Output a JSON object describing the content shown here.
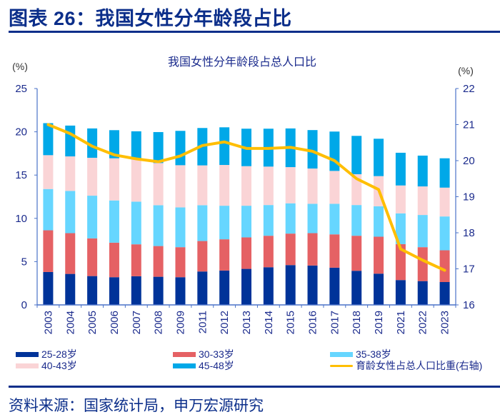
{
  "header": {
    "title": "图表 26：我国女性分年龄段占比"
  },
  "footer": {
    "source": "资料来源：国家统计局，申万宏源研究"
  },
  "chart_data": {
    "type": "bar",
    "stacked": true,
    "title": "我国女性分年龄段占总人口比",
    "left_unit": "(%)",
    "right_unit": "(%)",
    "categories": [
      "2003",
      "2004",
      "2005",
      "2006",
      "2007",
      "2008",
      "2009",
      "2011",
      "2012",
      "2013",
      "2014",
      "2015",
      "2016",
      "2017",
      "2018",
      "2019",
      "2021",
      "2022",
      "2023"
    ],
    "y_left": {
      "min": 0,
      "max": 25,
      "ticks": [
        0,
        5,
        10,
        15,
        20,
        25
      ]
    },
    "y_right": {
      "min": 16,
      "max": 22,
      "ticks": [
        16,
        17,
        18,
        19,
        20,
        21,
        22
      ]
    },
    "grid": false,
    "legend_position": "bottom",
    "series": [
      {
        "name": "25-28岁",
        "color": "#003399",
        "axis": "left",
        "type": "bar",
        "values": [
          3.8,
          3.58,
          3.33,
          3.2,
          3.31,
          3.25,
          3.2,
          3.86,
          3.97,
          4.16,
          4.35,
          4.6,
          4.55,
          4.3,
          3.94,
          3.61,
          2.87,
          2.75,
          2.64
        ]
      },
      {
        "name": "30-33岁",
        "color": "#E56164",
        "axis": "left",
        "type": "bar",
        "values": [
          4.82,
          4.71,
          4.36,
          3.99,
          3.69,
          3.55,
          3.47,
          3.52,
          3.61,
          3.64,
          3.64,
          3.64,
          3.74,
          3.85,
          4.05,
          4.27,
          4.15,
          3.92,
          3.67
        ]
      },
      {
        "name": "35-38岁",
        "color": "#66D6FF",
        "axis": "left",
        "type": "bar",
        "values": [
          4.77,
          4.88,
          4.93,
          4.88,
          4.93,
          4.72,
          4.6,
          4.14,
          3.88,
          3.66,
          3.55,
          3.5,
          3.39,
          3.53,
          3.55,
          3.52,
          3.56,
          3.72,
          3.91
        ]
      },
      {
        "name": "40-43岁",
        "color": "#FAD4D6",
        "axis": "left",
        "type": "bar",
        "values": [
          3.91,
          3.99,
          4.38,
          4.87,
          4.87,
          4.87,
          4.87,
          4.6,
          4.71,
          4.57,
          4.44,
          4.18,
          4.08,
          3.8,
          3.56,
          3.48,
          3.22,
          3.3,
          3.33
        ]
      },
      {
        "name": "45-48岁",
        "color": "#00A8E8",
        "axis": "left",
        "type": "bar",
        "values": [
          3.7,
          3.56,
          3.39,
          3.25,
          3.26,
          3.58,
          3.97,
          4.32,
          4.35,
          4.33,
          4.38,
          4.47,
          4.44,
          4.55,
          4.43,
          4.32,
          3.78,
          3.56,
          3.39
        ]
      },
      {
        "name": "育龄女性占总人口比重(右轴)",
        "color": "#FFBE00",
        "axis": "right",
        "type": "line",
        "values": [
          21.0,
          20.75,
          20.4,
          20.16,
          20.05,
          19.97,
          20.13,
          20.42,
          20.52,
          20.34,
          20.34,
          20.37,
          20.26,
          20.0,
          19.5,
          19.2,
          17.55,
          17.24,
          16.96
        ]
      }
    ],
    "legend": [
      {
        "label": "25-28岁",
        "series": 0
      },
      {
        "label": "30-33岁",
        "series": 1
      },
      {
        "label": "35-38岁",
        "series": 2
      },
      {
        "label": "40-43岁",
        "series": 3
      },
      {
        "label": "45-48岁",
        "series": 4
      },
      {
        "label": "育龄女性占总人口比重(右轴)",
        "series": 5
      }
    ]
  }
}
